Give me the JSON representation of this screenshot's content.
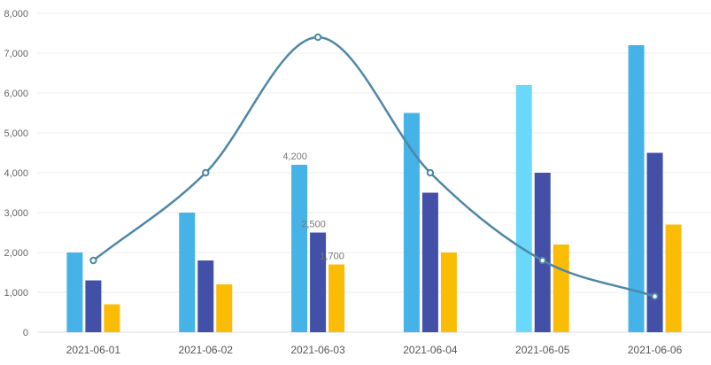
{
  "chart_data": {
    "type": "bar",
    "categories": [
      "2021-06-01",
      "2021-06-02",
      "2021-06-03",
      "2021-06-04",
      "2021-06-05",
      "2021-06-06"
    ],
    "series": [
      {
        "type": "bar",
        "color": "#45b3e8",
        "highlight_color": "#6ad8fb",
        "highlight_index": 4,
        "values": [
          2000,
          3000,
          4200,
          5500,
          6200,
          7200
        ]
      },
      {
        "type": "bar",
        "color": "#4350a8",
        "values": [
          1300,
          1800,
          2500,
          3500,
          4000,
          4500
        ]
      },
      {
        "type": "bar",
        "color": "#fbbc05",
        "values": [
          700,
          1200,
          1700,
          2000,
          2200,
          2700
        ]
      },
      {
        "type": "line",
        "color": "#4e87a6",
        "smooth": true,
        "values": [
          1800,
          4000,
          7400,
          4000,
          1800,
          900
        ]
      }
    ],
    "data_labels": [
      {
        "series": 0,
        "index": 2,
        "text": "4,200"
      },
      {
        "series": 1,
        "index": 2,
        "text": "2,500"
      },
      {
        "series": 2,
        "index": 2,
        "text": "1,700"
      }
    ],
    "y_ticks": [
      "0",
      "1,000",
      "2,000",
      "3,000",
      "4,000",
      "5,000",
      "6,000",
      "7,000",
      "8,000"
    ],
    "ylim": [
      0,
      8000
    ],
    "grid": true,
    "legend": "none",
    "title": "",
    "xlabel": "",
    "ylabel": ""
  }
}
